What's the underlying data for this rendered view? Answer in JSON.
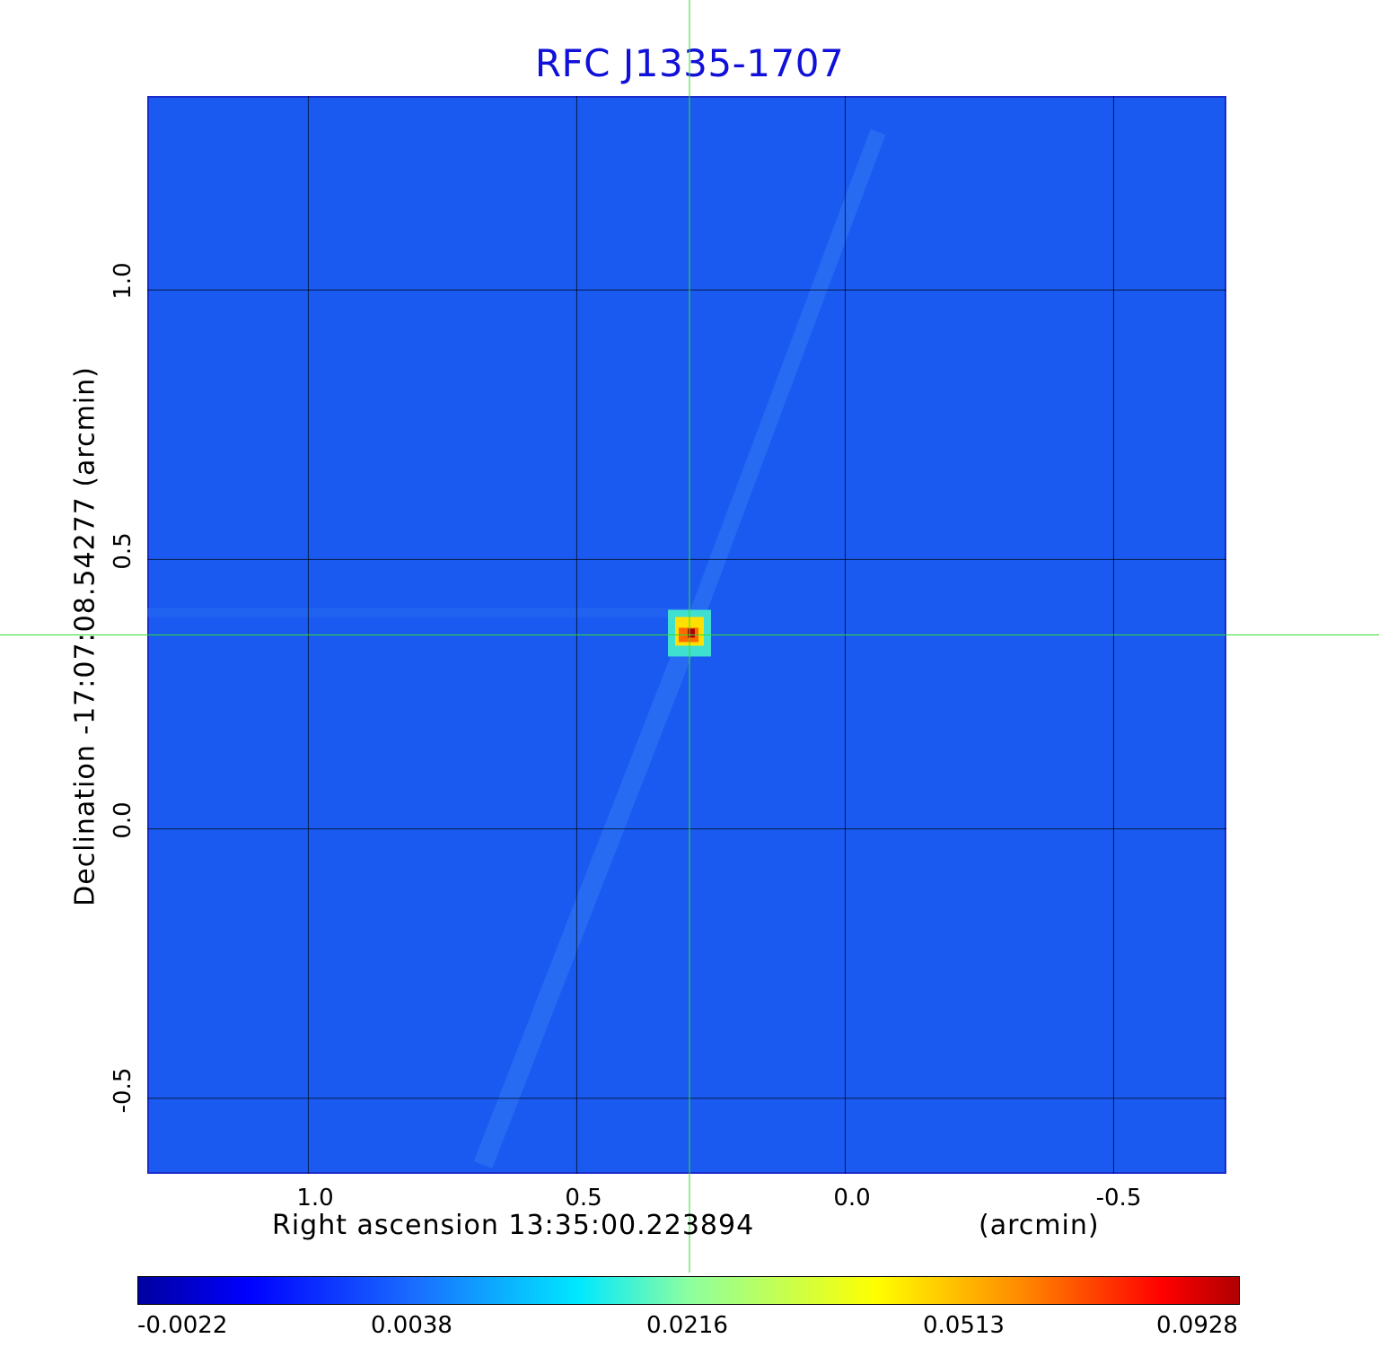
{
  "chart_data": {
    "type": "heatmap",
    "title": "RFC J1335-1707",
    "xlabel": "Right ascension  13:35:00.223894",
    "xlabel_unit": "(arcmin)",
    "ylabel": "Declination  -17:07:08.54277     (arcmin)",
    "x_ticks": [
      "1.0",
      "0.5",
      "0.0",
      "-0.5"
    ],
    "y_ticks": [
      "1.0",
      "0.5",
      "0.0",
      "-0.5"
    ],
    "xlim": [
      1.3,
      -0.71
    ],
    "ylim": [
      -0.64,
      1.36
    ],
    "grid": true,
    "crosshair": {
      "x": 0.29,
      "y": 0.36
    },
    "peak": {
      "x": 0.29,
      "y": 0.36,
      "value": 0.0928
    },
    "colorbar": {
      "colormap": "jet",
      "ticks": [
        "-0.0022",
        "0.0038",
        "0.0216",
        "0.0513",
        "0.0928"
      ]
    },
    "colors": {
      "background": "#1a5af0",
      "title": "#1010d8",
      "crosshair": "#33dd33"
    }
  }
}
